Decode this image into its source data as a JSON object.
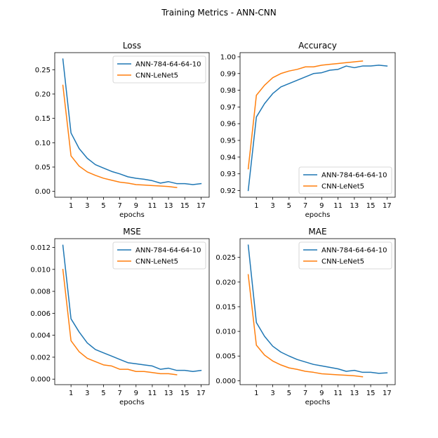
{
  "suptitle": "Training Metrics - ANN-CNN",
  "colors": {
    "ann": "#1f77b4",
    "cnn": "#ff7f0e"
  },
  "chart_data": [
    {
      "type": "line",
      "title": "Loss",
      "xlabel": "epochs",
      "ylabel": "",
      "xticks": [
        1,
        3,
        5,
        7,
        9,
        11,
        13,
        15,
        17
      ],
      "yticks": [
        0.0,
        0.05,
        0.1,
        0.15,
        0.2,
        0.25
      ],
      "ytick_labels": [
        "0.00",
        "0.05",
        "0.10",
        "0.15",
        "0.20",
        "0.25"
      ],
      "xlim": [
        -1,
        18
      ],
      "ylim": [
        -0.012,
        0.285
      ],
      "legend": "upper right",
      "series": [
        {
          "name": "ANN-784-64-64-10",
          "color": "#1f77b4",
          "x": [
            0,
            1,
            2,
            3,
            4,
            5,
            6,
            7,
            8,
            9,
            10,
            11,
            12,
            13,
            14,
            15,
            16,
            17
          ],
          "y": [
            0.272,
            0.12,
            0.088,
            0.068,
            0.055,
            0.048,
            0.041,
            0.036,
            0.03,
            0.027,
            0.025,
            0.022,
            0.017,
            0.02,
            0.016,
            0.016,
            0.014,
            0.016
          ]
        },
        {
          "name": "CNN-LeNet5",
          "color": "#ff7f0e",
          "x": [
            0,
            1,
            2,
            3,
            4,
            5,
            6,
            7,
            8,
            9,
            10,
            11,
            12,
            13,
            14
          ],
          "y": [
            0.218,
            0.073,
            0.052,
            0.04,
            0.033,
            0.027,
            0.023,
            0.019,
            0.017,
            0.014,
            0.013,
            0.012,
            0.011,
            0.01,
            0.008
          ]
        }
      ]
    },
    {
      "type": "line",
      "title": "Accuracy",
      "xlabel": "epochs",
      "ylabel": "",
      "xticks": [
        1,
        3,
        5,
        7,
        9,
        11,
        13,
        15,
        17
      ],
      "yticks": [
        0.92,
        0.93,
        0.94,
        0.95,
        0.96,
        0.97,
        0.98,
        0.99,
        1.0
      ],
      "ytick_labels": [
        "0.92",
        "0.93",
        "0.94",
        "0.95",
        "0.96",
        "0.97",
        "0.98",
        "0.99",
        "1.00"
      ],
      "xlim": [
        -1,
        18
      ],
      "ylim": [
        0.916,
        1.0025
      ],
      "legend": "lower right",
      "series": [
        {
          "name": "ANN-784-64-64-10",
          "color": "#1f77b4",
          "x": [
            0,
            1,
            2,
            3,
            4,
            5,
            6,
            7,
            8,
            9,
            10,
            11,
            12,
            13,
            14,
            15,
            16,
            17
          ],
          "y": [
            0.92,
            0.964,
            0.972,
            0.978,
            0.982,
            0.984,
            0.986,
            0.988,
            0.99,
            0.9905,
            0.992,
            0.9925,
            0.9945,
            0.9935,
            0.9945,
            0.9945,
            0.995,
            0.9945
          ]
        },
        {
          "name": "CNN-LeNet5",
          "color": "#ff7f0e",
          "x": [
            0,
            1,
            2,
            3,
            4,
            5,
            6,
            7,
            8,
            9,
            10,
            11,
            12,
            13,
            14
          ],
          "y": [
            0.933,
            0.977,
            0.983,
            0.9875,
            0.99,
            0.9915,
            0.9925,
            0.994,
            0.994,
            0.995,
            0.9955,
            0.996,
            0.9965,
            0.997,
            0.9975
          ]
        }
      ]
    },
    {
      "type": "line",
      "title": "MSE",
      "xlabel": "epochs",
      "ylabel": "",
      "xticks": [
        1,
        3,
        5,
        7,
        9,
        11,
        13,
        15,
        17
      ],
      "yticks": [
        0.0,
        0.002,
        0.004,
        0.006,
        0.008,
        0.01,
        0.012
      ],
      "ytick_labels": [
        "0.000",
        "0.002",
        "0.004",
        "0.006",
        "0.008",
        "0.010",
        "0.012"
      ],
      "xlim": [
        -1,
        18
      ],
      "ylim": [
        -0.0005,
        0.0128
      ],
      "legend": "upper right",
      "series": [
        {
          "name": "ANN-784-64-64-10",
          "color": "#1f77b4",
          "x": [
            0,
            1,
            2,
            3,
            4,
            5,
            6,
            7,
            8,
            9,
            10,
            11,
            12,
            13,
            14,
            15,
            16,
            17
          ],
          "y": [
            0.0122,
            0.0055,
            0.0043,
            0.0033,
            0.0027,
            0.0024,
            0.0021,
            0.0018,
            0.0015,
            0.0014,
            0.0013,
            0.0012,
            0.0009,
            0.001,
            0.0008,
            0.0008,
            0.0007,
            0.0008
          ]
        },
        {
          "name": "CNN-LeNet5",
          "color": "#ff7f0e",
          "x": [
            0,
            1,
            2,
            3,
            4,
            5,
            6,
            7,
            8,
            9,
            10,
            11,
            12,
            13,
            14
          ],
          "y": [
            0.01,
            0.0035,
            0.0025,
            0.0019,
            0.0016,
            0.0013,
            0.0012,
            0.0009,
            0.0009,
            0.0007,
            0.0007,
            0.0006,
            0.0005,
            0.0005,
            0.0004
          ]
        }
      ]
    },
    {
      "type": "line",
      "title": "MAE",
      "xlabel": "epochs",
      "ylabel": "",
      "xticks": [
        1,
        3,
        5,
        7,
        9,
        11,
        13,
        15,
        17
      ],
      "yticks": [
        0.0,
        0.005,
        0.01,
        0.015,
        0.02,
        0.025
      ],
      "ytick_labels": [
        "0.000",
        "0.005",
        "0.010",
        "0.015",
        "0.020",
        "0.025"
      ],
      "xlim": [
        -1,
        18
      ],
      "ylim": [
        -0.0008,
        0.0288
      ],
      "legend": "upper right",
      "series": [
        {
          "name": "ANN-784-64-64-10",
          "color": "#1f77b4",
          "x": [
            0,
            1,
            2,
            3,
            4,
            5,
            6,
            7,
            8,
            9,
            10,
            11,
            12,
            13,
            14,
            15,
            16,
            17
          ],
          "y": [
            0.0275,
            0.0118,
            0.009,
            0.007,
            0.0058,
            0.005,
            0.0043,
            0.0038,
            0.0033,
            0.003,
            0.0027,
            0.0024,
            0.0019,
            0.0021,
            0.0017,
            0.0017,
            0.0015,
            0.0016
          ]
        },
        {
          "name": "CNN-LeNet5",
          "color": "#ff7f0e",
          "x": [
            0,
            1,
            2,
            3,
            4,
            5,
            6,
            7,
            8,
            9,
            10,
            11,
            12,
            13,
            14
          ],
          "y": [
            0.0215,
            0.0072,
            0.0052,
            0.004,
            0.0032,
            0.0026,
            0.0023,
            0.0019,
            0.0017,
            0.0014,
            0.0013,
            0.0012,
            0.0011,
            0.001,
            0.0008
          ]
        }
      ]
    }
  ]
}
